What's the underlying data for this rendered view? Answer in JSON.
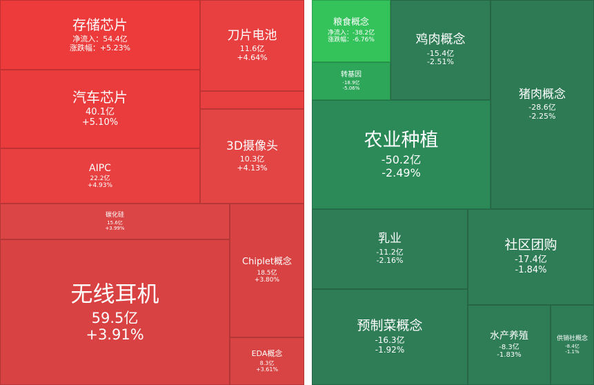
{
  "colors": {
    "gain_strong": "#ed3b3b",
    "gain_mid": "#e24444",
    "gain_soft": "#d84343",
    "loss_bright": "#33c35a",
    "loss_strong": "#2a9a5c",
    "loss_mid": "#2f7d57"
  },
  "gainers": [
    {
      "name": "存储芯片",
      "flow_label": "净流入：",
      "flow": "54.4亿",
      "change_label": "涨跌幅：",
      "change": "+5.23%"
    },
    {
      "name": "刀片电池",
      "flow": "11.6亿",
      "change": "+4.64%"
    },
    {
      "name": "汽车芯片",
      "flow": "40.1亿",
      "change": "+5.10%"
    },
    {
      "name": "3D摄像头",
      "flow": "10.3亿",
      "change": "+4.13%"
    },
    {
      "name": "AIPC",
      "flow": "22.2亿",
      "change": "+4.93%"
    },
    {
      "name": "碳化硅",
      "flow": "15.6亿",
      "change": "+3.99%"
    },
    {
      "name": "无线耳机",
      "flow": "59.5亿",
      "change": "+3.91%"
    },
    {
      "name": "Chiplet概念",
      "flow": "18.5亿",
      "change": "+3.80%"
    },
    {
      "name": "EDA概念",
      "flow": "8.3亿",
      "change": "+3.61%"
    }
  ],
  "losers": [
    {
      "name": "粮食概念",
      "flow_label": "净流入：",
      "flow": "-38.2亿",
      "change_label": "涨跌幅：",
      "change": "-6.76%"
    },
    {
      "name": "鸡肉概念",
      "flow": "-15.4亿",
      "change": "-2.51%"
    },
    {
      "name": "转基因",
      "flow": "-18.9亿",
      "change": "-5.06%"
    },
    {
      "name": "猪肉概念",
      "flow": "-28.6亿",
      "change": "-2.25%"
    },
    {
      "name": "农业种植",
      "flow": "-50.2亿",
      "change": "-2.49%"
    },
    {
      "name": "乳业",
      "flow": "-11.2亿",
      "change": "-2.16%"
    },
    {
      "name": "社区团购",
      "flow": "-17.4亿",
      "change": "-1.84%"
    },
    {
      "name": "预制菜概念",
      "flow": "-16.3亿",
      "change": "-1.92%"
    },
    {
      "name": "水产养殖",
      "flow": "-8.3亿",
      "change": "-1.83%"
    },
    {
      "name": "供销社概念",
      "flow": "-8.4亿",
      "change": "-1.1%"
    }
  ]
}
